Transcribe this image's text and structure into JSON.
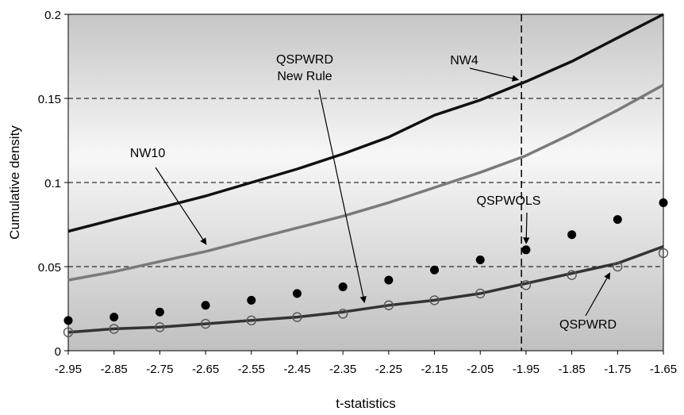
{
  "chart_data": {
    "type": "line",
    "title": "",
    "xlabel": "t-statistics",
    "ylabel": "Cumulative density",
    "xlim": [
      -2.95,
      -1.65
    ],
    "ylim": [
      0,
      0.2
    ],
    "x_ticks": [
      -2.95,
      -2.85,
      -2.75,
      -2.65,
      -2.55,
      -2.45,
      -2.35,
      -2.25,
      -2.15,
      -2.05,
      -1.95,
      -1.85,
      -1.75,
      -1.65
    ],
    "x_tick_labels": [
      "-2.95",
      "-2.85",
      "-2.75",
      "-2.65",
      "-2.55",
      "-2.45",
      "-2.35",
      "-2.25",
      "-2.15",
      "-2.05",
      "-1.95",
      "-1.85",
      "-1.75",
      "-1.65"
    ],
    "y_ticks": [
      0,
      0.05,
      0.1,
      0.15,
      0.2
    ],
    "y_tick_labels": [
      "0",
      "0.05",
      "0.1",
      "0.15",
      "0.2"
    ],
    "gridlines_y": [
      0.05,
      0.1,
      0.15
    ],
    "vertical_reference_x": -1.96,
    "x": [
      -2.95,
      -2.85,
      -2.75,
      -2.65,
      -2.55,
      -2.45,
      -2.35,
      -2.25,
      -2.15,
      -2.05,
      -1.95,
      -1.85,
      -1.75,
      -1.65
    ],
    "series": [
      {
        "name": "NW4",
        "style": "line",
        "color": "#111111",
        "values": [
          0.071,
          0.078,
          0.085,
          0.092,
          0.1,
          0.108,
          0.117,
          0.127,
          0.14,
          0.149,
          0.16,
          0.172,
          0.186,
          0.2
        ]
      },
      {
        "name": "NW10",
        "style": "line",
        "color": "#7a7a7a",
        "values": [
          0.042,
          0.047,
          0.053,
          0.059,
          0.066,
          0.073,
          0.08,
          0.088,
          0.097,
          0.106,
          0.116,
          0.129,
          0.143,
          0.158
        ]
      },
      {
        "name": "QSPWRD New Rule",
        "style": "line",
        "color": "#333333",
        "values": [
          0.011,
          0.013,
          0.014,
          0.016,
          0.018,
          0.02,
          0.023,
          0.027,
          0.03,
          0.034,
          0.04,
          0.046,
          0.052,
          0.062
        ]
      },
      {
        "name": "QSPWRD",
        "style": "open-circles",
        "color": "#555555",
        "values": [
          0.011,
          0.013,
          0.014,
          0.016,
          0.018,
          0.02,
          0.022,
          0.027,
          0.03,
          0.034,
          0.039,
          0.045,
          0.05,
          0.058
        ]
      },
      {
        "name": "QSPWOLS",
        "style": "filled-dots",
        "color": "#000000",
        "values": [
          0.018,
          0.02,
          0.023,
          0.027,
          0.03,
          0.034,
          0.038,
          0.042,
          0.048,
          0.054,
          0.06,
          0.069,
          0.078,
          0.088
        ]
      }
    ],
    "annotations": [
      {
        "label": "NW4",
        "target_series": "NW4",
        "target_x": -1.95
      },
      {
        "label": "NW10",
        "target_series": "NW10",
        "target_x": -2.64
      },
      {
        "lines": [
          "QSPWRD",
          "New Rule"
        ],
        "target_series": "QSPWRD New Rule",
        "target_x": -2.3
      },
      {
        "label": "QSPWOLS",
        "target_series": "QSPWOLS",
        "target_x": -1.95
      },
      {
        "label": "QSPWRD",
        "target_series": "QSPWRD",
        "target_x": -1.76
      }
    ],
    "grid": true,
    "legend": "none",
    "colors": {
      "plot_bg_light": "#f7f7f7",
      "plot_bg_dark": "#c6c6c6",
      "axis": "#000000"
    }
  }
}
